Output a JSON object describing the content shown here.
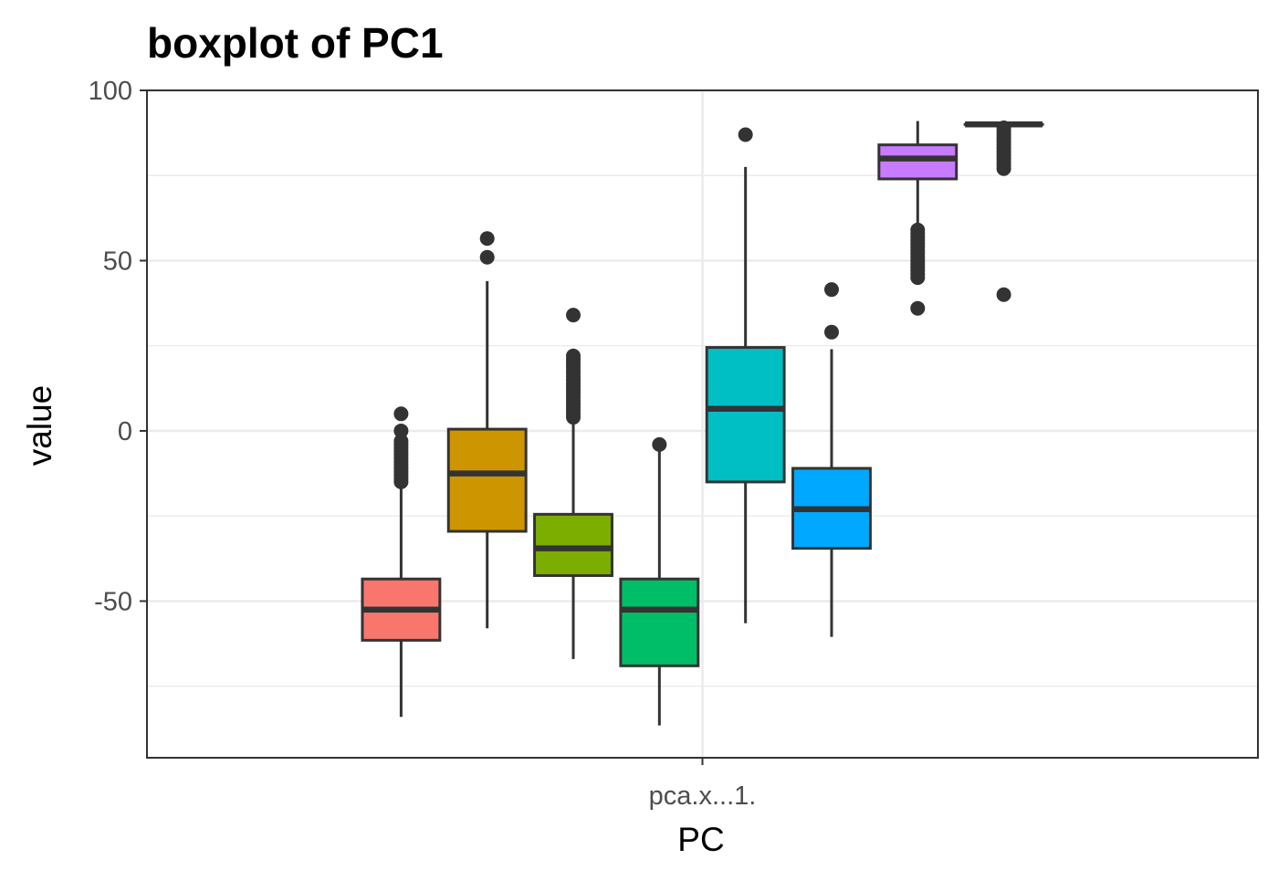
{
  "chart_data": {
    "type": "boxplot",
    "title": "boxplot of PC1",
    "xlabel": "PC",
    "ylabel": "value",
    "x_categories": [
      "pca.x...1."
    ],
    "ylim": [
      -96,
      100
    ],
    "y_ticks": [
      100,
      50,
      0,
      -50
    ],
    "y_tick_labels": [
      "100",
      "50",
      "0",
      "-50"
    ],
    "grid": true,
    "legend": "none",
    "colors": [
      "#F8766D",
      "#CD9600",
      "#7CAE00",
      "#00BE67",
      "#00BFC4",
      "#00A9FF",
      "#C77CFF",
      "#FF61CC"
    ],
    "series": [
      {
        "q1": -61.5,
        "median": -52.5,
        "q3": -43.5,
        "whisker_low": -84,
        "whisker_high": -16,
        "outliers": [
          -15,
          -14,
          -13,
          -12,
          -11,
          -10,
          -9,
          -8,
          -7,
          -6,
          -5,
          -4,
          -3,
          0,
          5
        ]
      },
      {
        "q1": -29.5,
        "median": -12.5,
        "q3": 0.5,
        "whisker_low": -58,
        "whisker_high": 44,
        "outliers": [
          51,
          56.5
        ]
      },
      {
        "q1": -42.5,
        "median": -34.5,
        "q3": -24.5,
        "whisker_low": -67,
        "whisker_high": 3,
        "outliers": [
          4,
          5,
          6,
          7,
          8,
          9,
          10,
          11,
          12,
          13,
          14,
          15,
          16,
          17,
          18,
          19,
          20,
          21,
          22,
          34
        ]
      },
      {
        "q1": -69,
        "median": -52.5,
        "q3": -43.5,
        "whisker_low": -86.5,
        "whisker_high": -5,
        "outliers": [
          -4
        ]
      },
      {
        "q1": -15,
        "median": 6.5,
        "q3": 24.5,
        "whisker_low": -56.5,
        "whisker_high": 77.5,
        "outliers": [
          87
        ]
      },
      {
        "q1": -34.5,
        "median": -23,
        "q3": -11,
        "whisker_low": -60.5,
        "whisker_high": 24,
        "outliers": [
          29,
          41.5
        ]
      },
      {
        "q1": 74,
        "median": 80,
        "q3": 84,
        "whisker_low": 60,
        "whisker_high": 91,
        "outliers": [
          36,
          45,
          46,
          47,
          48,
          49,
          50,
          51,
          52,
          53,
          54,
          55,
          56,
          57,
          58,
          59
        ]
      },
      {
        "q1": 90,
        "median": 90,
        "q3": 90,
        "whisker_low": 90,
        "whisker_high": 90,
        "outliers": [
          40,
          77,
          78,
          79,
          80,
          81,
          82,
          83,
          84,
          85,
          86,
          87,
          88,
          89
        ]
      }
    ]
  }
}
